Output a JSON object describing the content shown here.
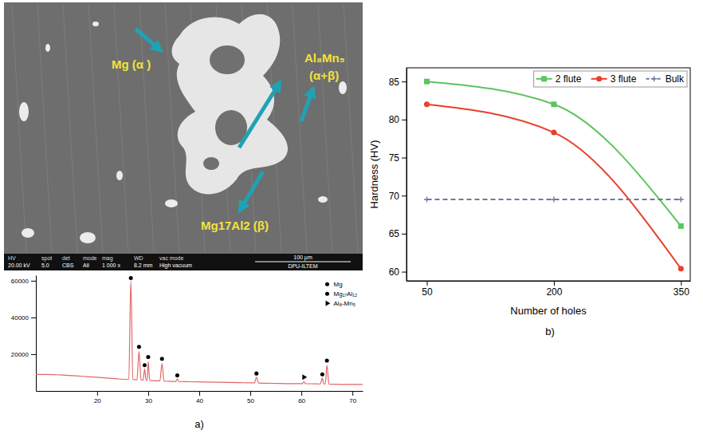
{
  "chart_data": [
    {
      "type": "image",
      "annotations": [
        "Mg (α )",
        "Al₈Mn₅",
        "(α+β)",
        "Mg17Al2 (β)"
      ],
      "info_bar": {
        "labels": [
          "HV",
          "spot",
          "det",
          "mode",
          "mag",
          "WD",
          "vac mode"
        ],
        "values": [
          "20.00 kV",
          "5.0",
          "CBS",
          "All",
          "1 000 x",
          "8.2 mm",
          "High vacuum"
        ]
      },
      "scale_bar": "100 μm",
      "institution": "DPU-ILTEM"
    },
    {
      "type": "line",
      "title": "a)",
      "xlim": [
        8,
        72
      ],
      "xticks": [
        20,
        30,
        40,
        50,
        60,
        70
      ],
      "ylim": [
        0,
        63000
      ],
      "yticks": [
        20000,
        40000,
        60000
      ],
      "legend": "upper right",
      "series": [
        {
          "color": "#e06666",
          "line_style": "solid",
          "x": [
            8,
            10,
            12,
            14,
            16,
            18,
            20,
            22,
            24,
            25,
            26.2,
            26.6,
            27.0,
            27.8,
            28.2,
            28.6,
            29.0,
            29.3,
            29.6,
            29.8,
            30.0,
            30.3,
            31,
            32.3,
            32.7,
            33.1,
            34,
            35.4,
            35.7,
            36.0,
            38,
            40,
            42,
            44,
            46,
            48,
            50,
            50.8,
            51.2,
            51.6,
            53,
            55,
            57,
            59,
            60.2,
            60.5,
            60.8,
            62,
            63.7,
            64.1,
            64.4,
            64.7,
            65.0,
            65.4,
            67,
            69,
            71,
            72
          ],
          "values": [
            9000,
            9000,
            8800,
            8500,
            8200,
            7800,
            7400,
            7000,
            6600,
            6400,
            6300,
            60000,
            6200,
            6100,
            21500,
            6000,
            5900,
            12000,
            5800,
            5800,
            16000,
            5700,
            5600,
            5500,
            15000,
            5400,
            5300,
            5200,
            6500,
            5100,
            5000,
            4900,
            4800,
            4700,
            4600,
            4500,
            4400,
            4400,
            7500,
            4300,
            4200,
            4100,
            4000,
            4000,
            4000,
            5200,
            3900,
            3900,
            3800,
            7000,
            3800,
            3800,
            14000,
            3700,
            3600,
            3500,
            3500,
            3500
          ]
        },
        {
          "name": "Mg",
          "type": "scatter",
          "marker": "circle",
          "color": "#000000",
          "x": [
            26.6,
            30.0,
            32.7,
            51.2,
            64.1,
            65.0
          ],
          "values": [
            61500,
            18500,
            17500,
            9500,
            9000,
            16500
          ]
        },
        {
          "name": "Mg₁₇Al₁₂",
          "type": "scatter",
          "marker": "circle",
          "color": "#000000",
          "x": [
            28.2,
            29.3,
            35.7
          ],
          "values": [
            24000,
            14000,
            8500
          ]
        },
        {
          "name": "Al₈-Mn₅",
          "type": "scatter",
          "marker": "arrow",
          "color": "#000000",
          "x": [
            60.5
          ],
          "values": [
            7500
          ]
        }
      ]
    },
    {
      "type": "line",
      "title": "b)",
      "x_label": "Number of holes",
      "y_label": "Hardness (HV)",
      "xlim": [
        26,
        361
      ],
      "xticks": [
        50,
        200,
        350
      ],
      "ylim": [
        58.8,
        86.8
      ],
      "yticks": [
        60,
        65,
        70,
        75,
        80,
        85
      ],
      "legend": "upper right",
      "series": [
        {
          "name": "2 flute",
          "color": "#5fc35f",
          "marker": "square",
          "line_style": "solid",
          "x": [
            50,
            200,
            350
          ],
          "values": [
            85,
            82,
            66
          ]
        },
        {
          "name": "3 flute",
          "color": "#e8402a",
          "marker": "circle",
          "line_style": "solid",
          "x": [
            50,
            200,
            350
          ],
          "values": [
            82,
            78.3,
            60.4
          ]
        },
        {
          "name": "Bulk",
          "color": "#6b7a99",
          "marker": "plus",
          "line_style": "dashed",
          "x": [
            50,
            200,
            350
          ],
          "values": [
            69.5,
            69.5,
            69.5
          ]
        }
      ]
    }
  ]
}
